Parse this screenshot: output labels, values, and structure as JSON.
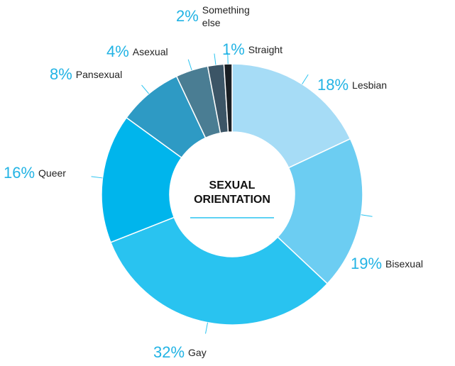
{
  "chart_data": {
    "type": "donut",
    "title": "SEXUAL ORIENTATION",
    "categories": [
      "Lesbian",
      "Bisexual",
      "Gay",
      "Queer",
      "Pansexual",
      "Asexual",
      "Something else",
      "Straight"
    ],
    "values": [
      18,
      19,
      32,
      16,
      8,
      4,
      2,
      1
    ],
    "value_labels": [
      "18%",
      "19%",
      "32%",
      "16%",
      "8%",
      "4%",
      "2%",
      "1%"
    ],
    "colors": [
      "#a6dcf6",
      "#6ccdf2",
      "#29c3f0",
      "#00b5ec",
      "#2e9ac4",
      "#4a7d93",
      "#3c5566",
      "#1a1f24"
    ]
  }
}
